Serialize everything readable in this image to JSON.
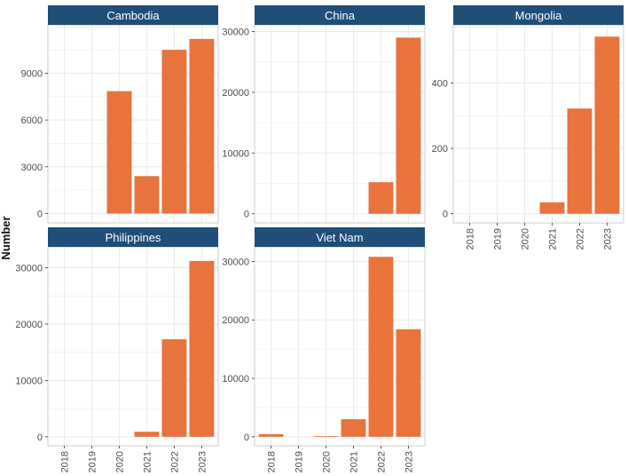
{
  "figure": {
    "ylabel": "Number"
  },
  "colors": {
    "bar": "#E8733C",
    "strip": "#1F4E79",
    "strip_text": "#FFFFFF",
    "grid": "#EBEBEB",
    "border": "#CCCCCC",
    "tick_text": "#4D4D4D"
  },
  "chart_data": [
    {
      "type": "bar",
      "title": "Cambodia",
      "categories": [
        "2018",
        "2019",
        "2020",
        "2021",
        "2022",
        "2023"
      ],
      "values": [
        0,
        0,
        7850,
        2400,
        10500,
        11200
      ],
      "yticks": [
        0,
        3000,
        6000,
        9000
      ],
      "ylim": [
        -600,
        12100
      ],
      "xlabel": "",
      "ylabel": "Number"
    },
    {
      "type": "bar",
      "title": "China",
      "categories": [
        "2018",
        "2019",
        "2020",
        "2021",
        "2022",
        "2023"
      ],
      "values": [
        0,
        0,
        0,
        0,
        5200,
        29000
      ],
      "yticks": [
        0,
        10000,
        20000,
        30000
      ],
      "ylim": [
        -1500,
        31100
      ],
      "xlabel": "",
      "ylabel": "Number"
    },
    {
      "type": "bar",
      "title": "Mongolia",
      "categories": [
        "2018",
        "2019",
        "2020",
        "2021",
        "2022",
        "2023"
      ],
      "values": [
        0,
        0,
        0,
        35,
        322,
        542
      ],
      "yticks": [
        0,
        200,
        400
      ],
      "ylim": [
        -28,
        578
      ],
      "xlabel": "",
      "ylabel": "Number"
    },
    {
      "type": "bar",
      "title": "Philippines",
      "categories": [
        "2018",
        "2019",
        "2020",
        "2021",
        "2022",
        "2023"
      ],
      "values": [
        0,
        0,
        0,
        900,
        17300,
        31200
      ],
      "yticks": [
        0,
        10000,
        20000,
        30000
      ],
      "ylim": [
        -1600,
        33700
      ],
      "xlabel": "",
      "ylabel": "Number"
    },
    {
      "type": "bar",
      "title": "Viet Nam",
      "categories": [
        "2018",
        "2019",
        "2020",
        "2021",
        "2022",
        "2023"
      ],
      "values": [
        450,
        0,
        100,
        3000,
        30800,
        18400
      ],
      "yticks": [
        0,
        10000,
        20000,
        30000
      ],
      "ylim": [
        -1550,
        32500
      ],
      "xlabel": "",
      "ylabel": "Number"
    }
  ]
}
